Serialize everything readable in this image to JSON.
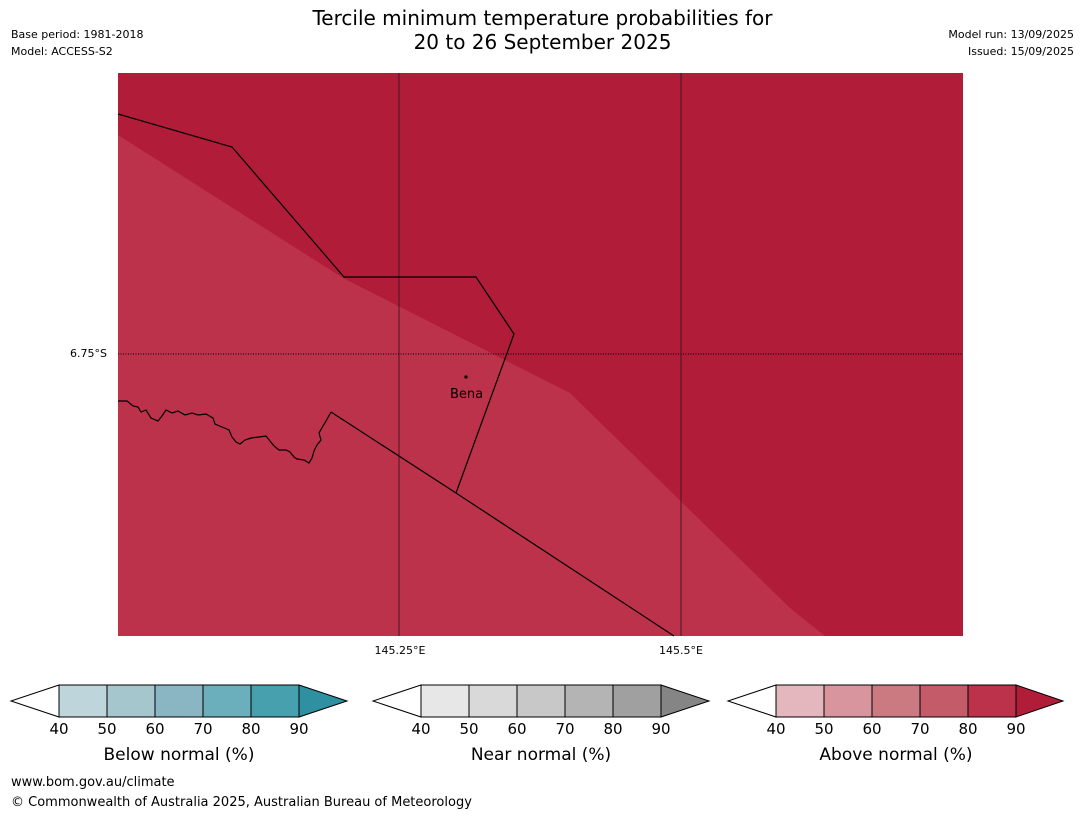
{
  "header": {
    "title_line1": "Tercile minimum temperature probabilities for",
    "title_line2": "20 to 26 September 2025",
    "base_period": "Base period: 1981-2018",
    "model": "Model: ACCESS-S2",
    "model_run": "Model run: 13/09/2025",
    "issued": "Issued: 15/09/2025"
  },
  "map": {
    "lat_label": "6.75°S",
    "lon_labels": [
      "145.25°E",
      "145.5°E"
    ],
    "place": "Bena",
    "colors": {
      "above_80_90": "#b11c38",
      "above_70_80": "#bc324a",
      "border": "#000000"
    }
  },
  "legends": [
    {
      "title": "Below normal (%)",
      "ticks": [
        "40",
        "50",
        "60",
        "70",
        "80",
        "90"
      ],
      "colors": [
        "#ffffff",
        "#bdd5db",
        "#a5c6cc",
        "#8ab6c3",
        "#6baebc",
        "#46a0ae",
        "#2e90a0"
      ]
    },
    {
      "title": "Near normal (%)",
      "ticks": [
        "40",
        "50",
        "60",
        "70",
        "80",
        "90"
      ],
      "colors": [
        "#ffffff",
        "#e7e7e7",
        "#d9d9d9",
        "#c8c8c8",
        "#b4b4b4",
        "#a0a0a0",
        "#858585"
      ]
    },
    {
      "title": "Above normal (%)",
      "ticks": [
        "40",
        "50",
        "60",
        "70",
        "80",
        "90"
      ],
      "colors": [
        "#ffffff",
        "#e3b7bd",
        "#d8959d",
        "#cc7a82",
        "#c35b69",
        "#bc324a",
        "#b11c38"
      ]
    }
  ],
  "footer": {
    "url": "www.bom.gov.au/climate",
    "copyright": "© Commonwealth of Australia 2025, Australian Bureau of Meteorology"
  }
}
